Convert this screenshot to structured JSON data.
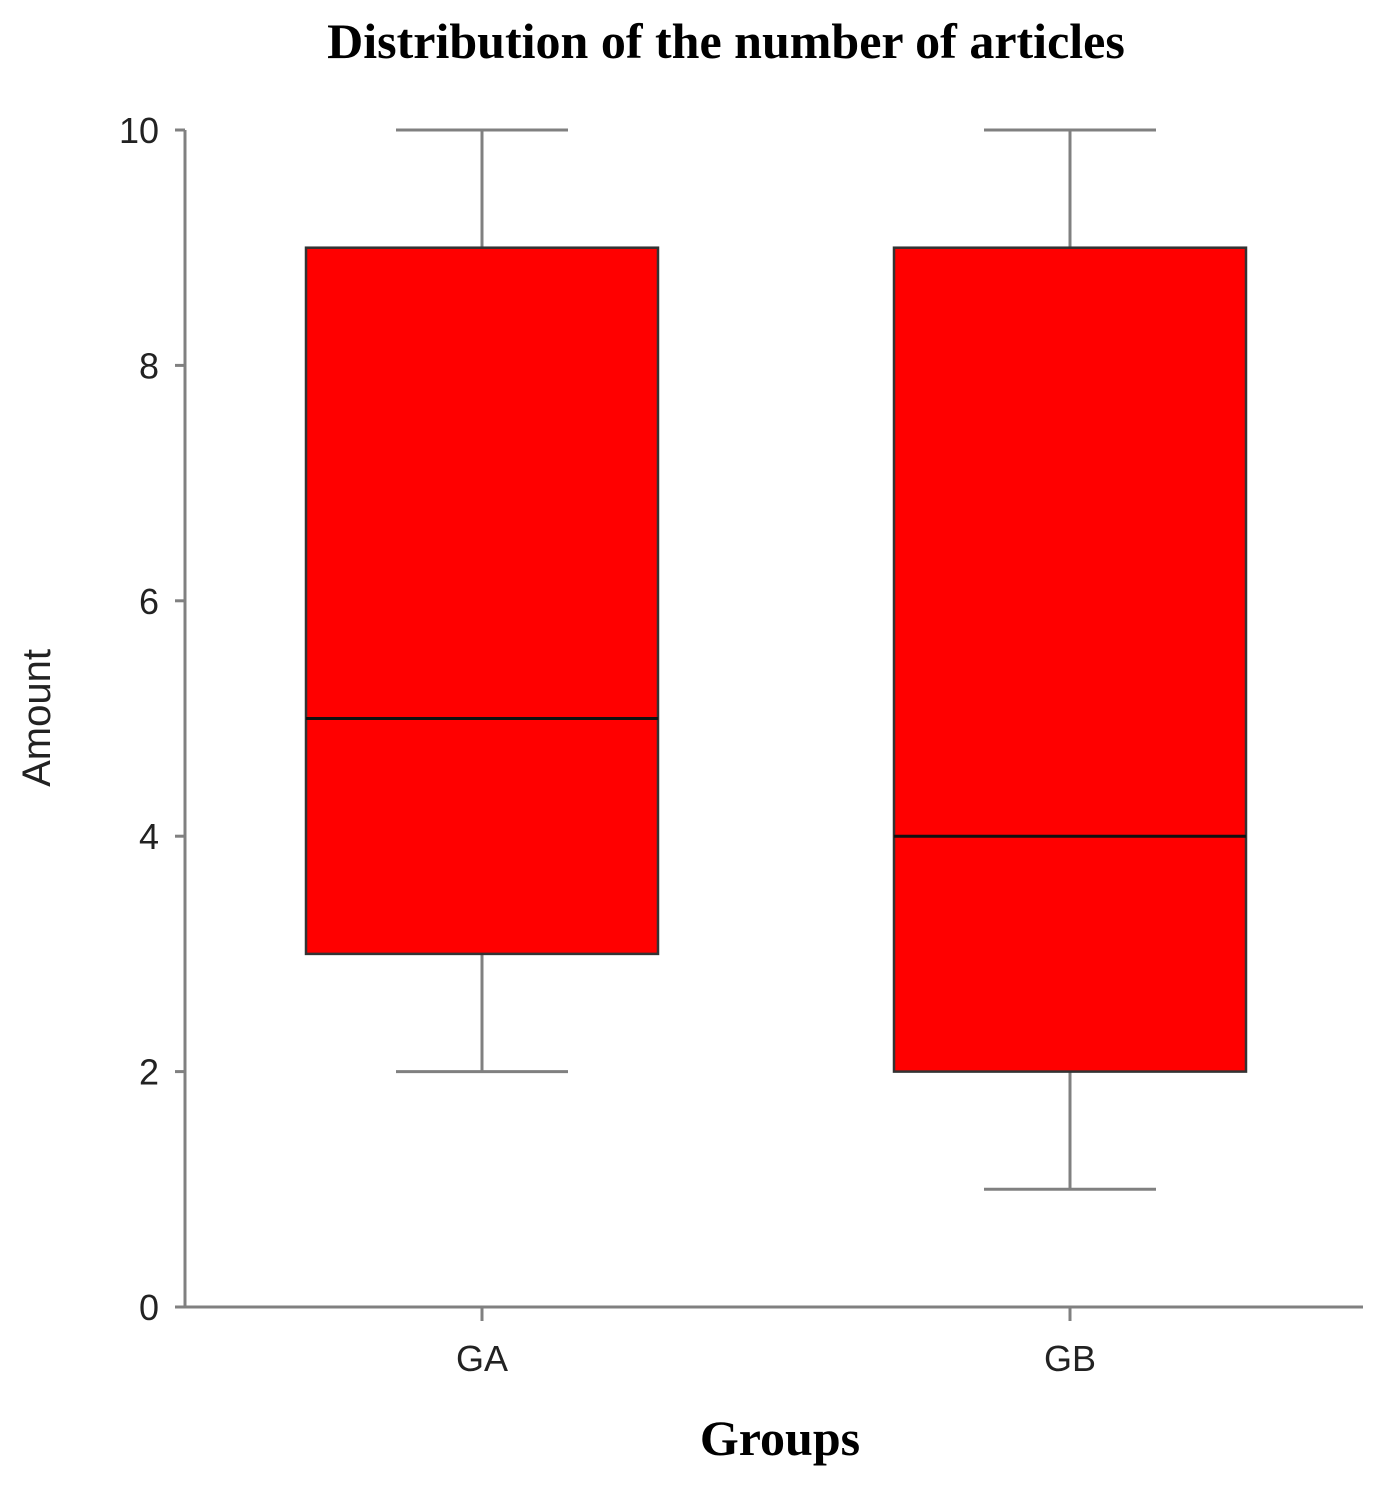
{
  "chart_data": {
    "type": "boxplot",
    "title": "Distribution of the number of articles",
    "xlabel": "Groups",
    "ylabel": "Amount",
    "ylim": [
      0,
      10
    ],
    "yticks": [
      0,
      2,
      4,
      6,
      8,
      10
    ],
    "categories": [
      "GA",
      "GB"
    ],
    "series": [
      {
        "category": "GA",
        "min": 2,
        "q1": 3,
        "median": 5,
        "q3": 9,
        "max": 10
      },
      {
        "category": "GB",
        "min": 1,
        "q1": 2,
        "median": 4,
        "q3": 9,
        "max": 10
      }
    ],
    "box_color": "#ff0000",
    "grid": false,
    "legend": "none"
  }
}
